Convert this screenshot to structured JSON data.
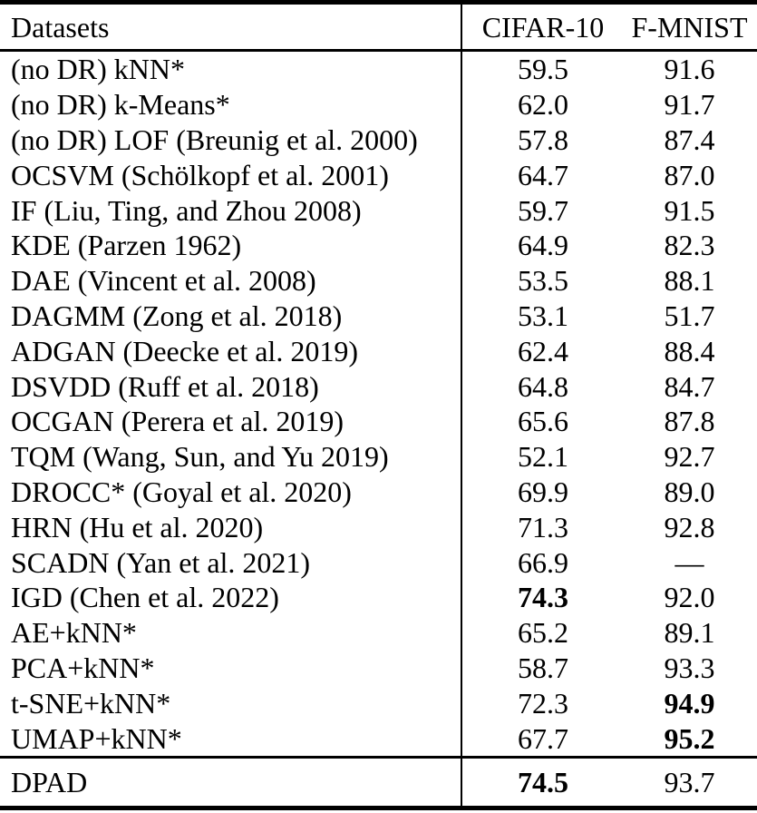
{
  "page": {
    "background_color": "#ffffff",
    "text_color": "#000000",
    "rule_color": "#000000"
  },
  "table": {
    "header": {
      "datasets": "Datasets",
      "cifar10": "CIFAR-10",
      "fmnist": "F-MNIST"
    },
    "rows": [
      {
        "method": "(no DR) kNN*",
        "cifar10": "59.5",
        "fmnist": "91.6",
        "cifar10_bold": false,
        "fmnist_bold": false
      },
      {
        "method": "(no DR) k-Means*",
        "cifar10": "62.0",
        "fmnist": "91.7",
        "cifar10_bold": false,
        "fmnist_bold": false
      },
      {
        "method": "(no DR) LOF (Breunig et al. 2000)",
        "cifar10": "57.8",
        "fmnist": "87.4",
        "cifar10_bold": false,
        "fmnist_bold": false
      },
      {
        "method": "OCSVM (Schölkopf et al. 2001)",
        "cifar10": "64.7",
        "fmnist": "87.0",
        "cifar10_bold": false,
        "fmnist_bold": false
      },
      {
        "method": "IF (Liu, Ting, and Zhou 2008)",
        "cifar10": "59.7",
        "fmnist": "91.5",
        "cifar10_bold": false,
        "fmnist_bold": false
      },
      {
        "method": "KDE (Parzen 1962)",
        "cifar10": "64.9",
        "fmnist": "82.3",
        "cifar10_bold": false,
        "fmnist_bold": false
      },
      {
        "method": "DAE (Vincent et al. 2008)",
        "cifar10": "53.5",
        "fmnist": "88.1",
        "cifar10_bold": false,
        "fmnist_bold": false
      },
      {
        "method": "DAGMM (Zong et al. 2018)",
        "cifar10": "53.1",
        "fmnist": "51.7",
        "cifar10_bold": false,
        "fmnist_bold": false
      },
      {
        "method": "ADGAN (Deecke et al. 2019)",
        "cifar10": "62.4",
        "fmnist": "88.4",
        "cifar10_bold": false,
        "fmnist_bold": false
      },
      {
        "method": "DSVDD (Ruff et al. 2018)",
        "cifar10": "64.8",
        "fmnist": "84.7",
        "cifar10_bold": false,
        "fmnist_bold": false
      },
      {
        "method": "OCGAN (Perera et al. 2019)",
        "cifar10": "65.6",
        "fmnist": "87.8",
        "cifar10_bold": false,
        "fmnist_bold": false
      },
      {
        "method": "TQM (Wang, Sun, and Yu 2019)",
        "cifar10": "52.1",
        "fmnist": "92.7",
        "cifar10_bold": false,
        "fmnist_bold": false
      },
      {
        "method": "DROCC* (Goyal et al. 2020)",
        "cifar10": "69.9",
        "fmnist": "89.0",
        "cifar10_bold": false,
        "fmnist_bold": false
      },
      {
        "method": "HRN (Hu et al. 2020)",
        "cifar10": "71.3",
        "fmnist": "92.8",
        "cifar10_bold": false,
        "fmnist_bold": false
      },
      {
        "method": "SCADN (Yan et al. 2021)",
        "cifar10": "66.9",
        "fmnist": "—",
        "cifar10_bold": false,
        "fmnist_bold": false
      },
      {
        "method": "IGD (Chen et al. 2022)",
        "cifar10": "74.3",
        "fmnist": "92.0",
        "cifar10_bold": true,
        "fmnist_bold": false
      },
      {
        "method": "AE+kNN*",
        "cifar10": "65.2",
        "fmnist": "89.1",
        "cifar10_bold": false,
        "fmnist_bold": false
      },
      {
        "method": "PCA+kNN*",
        "cifar10": "58.7",
        "fmnist": "93.3",
        "cifar10_bold": false,
        "fmnist_bold": false
      },
      {
        "method": "t-SNE+kNN*",
        "cifar10": "72.3",
        "fmnist": "94.9",
        "cifar10_bold": false,
        "fmnist_bold": true
      },
      {
        "method": "UMAP+kNN*",
        "cifar10": "67.7",
        "fmnist": "95.2",
        "cifar10_bold": false,
        "fmnist_bold": true
      }
    ],
    "footer": {
      "method": "DPAD",
      "cifar10": "74.5",
      "fmnist": "93.7",
      "cifar10_bold": true,
      "fmnist_bold": false
    }
  }
}
